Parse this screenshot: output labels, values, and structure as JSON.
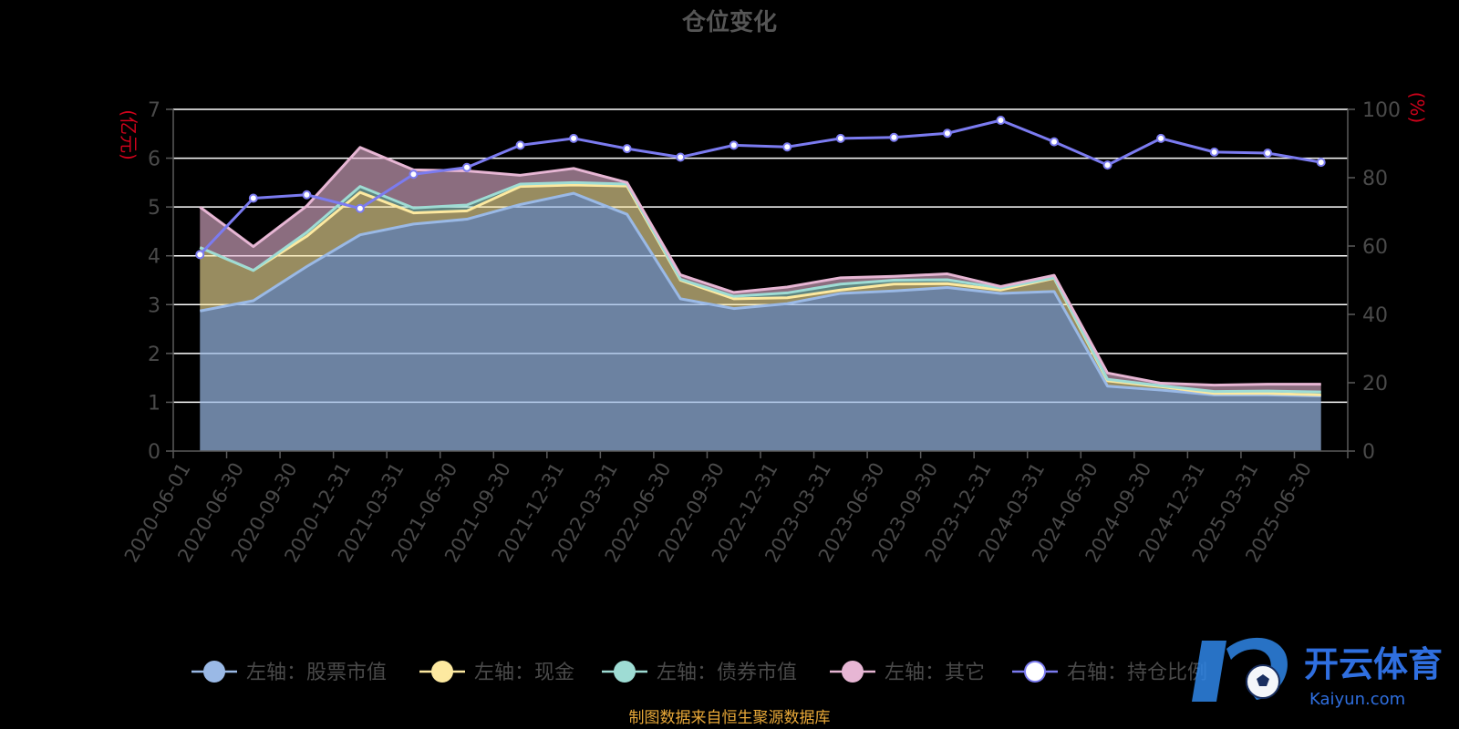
{
  "chart_data": {
    "type": "area",
    "title": "仓位变化",
    "left_unit": "(亿元)",
    "right_unit": "(%)",
    "x": [
      "2020-06-01",
      "2020-06-30",
      "2020-09-30",
      "2020-12-31",
      "2021-03-31",
      "2021-06-30",
      "2021-09-30",
      "2021-12-31",
      "2022-03-31",
      "2022-06-30",
      "2022-09-30",
      "2022-12-31",
      "2023-03-31",
      "2023-06-30",
      "2023-09-30",
      "2023-12-31",
      "2024-03-31",
      "2024-06-30",
      "2024-09-30",
      "2024-12-31",
      "2025-03-31",
      "2025-06-30"
    ],
    "ylim_left": [
      0,
      7
    ],
    "yticks_left": [
      "0",
      "1",
      "2",
      "3",
      "4",
      "5",
      "6",
      "7"
    ],
    "ylim_right": [
      0,
      100
    ],
    "yticks_right": [
      "0",
      "20",
      "40",
      "60",
      "80",
      "100"
    ],
    "grid": true,
    "legend_position": "bottom",
    "series": [
      {
        "name": "左轴：股票市值",
        "axis": "left",
        "type": "area",
        "color": "#9ab9e6",
        "values": [
          2.87,
          3.08,
          3.78,
          4.43,
          4.65,
          4.75,
          5.05,
          5.28,
          4.85,
          3.12,
          2.92,
          3.02,
          3.23,
          3.28,
          3.35,
          3.23,
          3.27,
          1.33,
          1.25,
          1.15,
          1.15,
          1.13
        ]
      },
      {
        "name": "左轴：现金",
        "axis": "left",
        "type": "area",
        "color": "#fde9a0",
        "values": [
          1.3,
          0.62,
          0.62,
          0.87,
          0.23,
          0.17,
          0.37,
          0.17,
          0.58,
          0.38,
          0.2,
          0.12,
          0.07,
          0.14,
          0.08,
          0.07,
          0.27,
          0.11,
          0.07,
          0.03,
          0.03,
          0.02
        ]
      },
      {
        "name": "左轴：债券市值",
        "axis": "left",
        "type": "area",
        "color": "#9edcd4",
        "values": [
          0,
          0,
          0.08,
          0.12,
          0.1,
          0.12,
          0.05,
          0.05,
          0.04,
          0.02,
          0.05,
          0.1,
          0.12,
          0.08,
          0.08,
          0.04,
          0.01,
          0.03,
          0.02,
          0.04,
          0.05,
          0.06
        ]
      },
      {
        "name": "左轴：其它",
        "axis": "left",
        "type": "area",
        "color": "#e7b6d4",
        "values": [
          0.83,
          0.49,
          0.54,
          0.8,
          0.78,
          0.7,
          0.18,
          0.29,
          0.03,
          0.09,
          0.08,
          0.12,
          0.13,
          0.08,
          0.12,
          0.03,
          0.05,
          0.13,
          0.05,
          0.13,
          0.14,
          0.16
        ]
      },
      {
        "name": "右轴：持仓比例",
        "axis": "right",
        "type": "line",
        "color": "#7b7bf0",
        "values": [
          57.5,
          74.0,
          75.0,
          71.0,
          81.0,
          83.0,
          89.5,
          91.5,
          88.5,
          86.0,
          89.5,
          89.0,
          91.5,
          91.8,
          93.0,
          96.8,
          90.5,
          83.7,
          91.5,
          87.5,
          87.2,
          84.5
        ]
      }
    ]
  },
  "source_note": "制图数据来自恒生聚源数据库",
  "watermark": {
    "brand": "开云体育",
    "domain": "Kaiyun.com"
  }
}
